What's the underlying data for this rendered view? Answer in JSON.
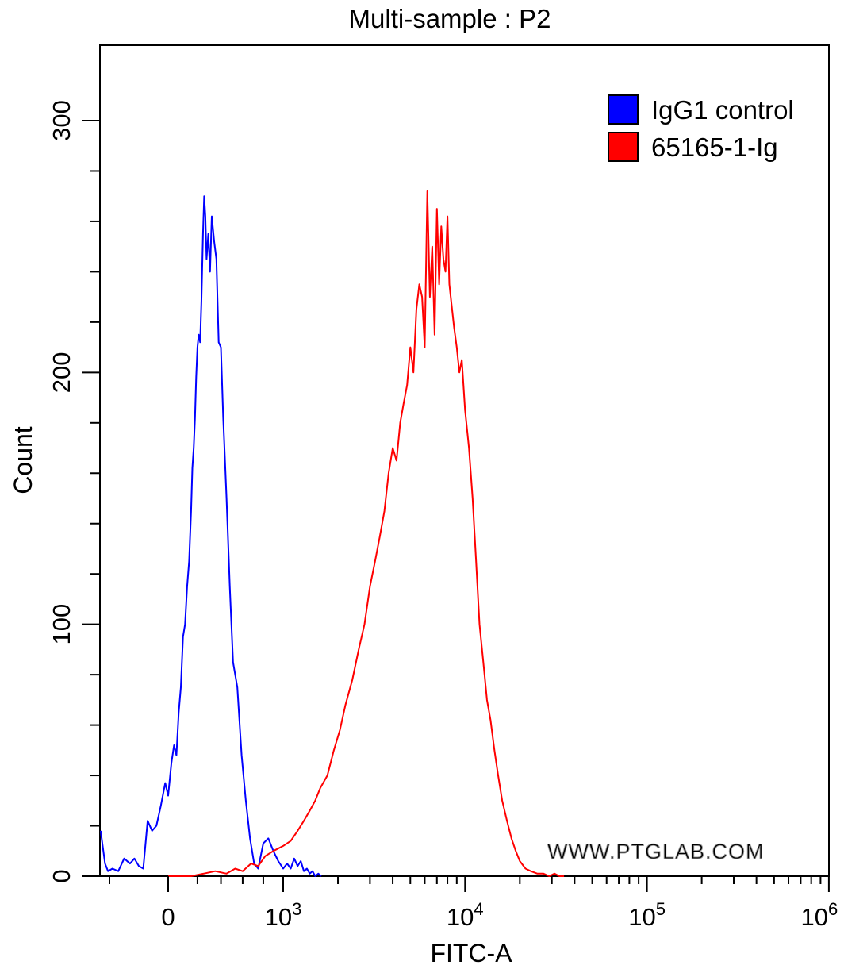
{
  "chart_data": {
    "type": "area",
    "title": "Multi-sample : P2",
    "xlabel": "FITC-A",
    "ylabel": "Count",
    "x_scale": "biexponential",
    "ylim": [
      0,
      315
    ],
    "y_ticks": [
      0,
      100,
      200,
      300
    ],
    "x_ticks": [
      {
        "value": 0,
        "base": "0",
        "exp": ""
      },
      {
        "value": 1000,
        "base": "10",
        "exp": "3"
      },
      {
        "value": 10000,
        "base": "10",
        "exp": "4"
      },
      {
        "value": 100000,
        "base": "10",
        "exp": "5"
      },
      {
        "value": 1000000,
        "base": "10",
        "exp": "6"
      }
    ],
    "legend_position": "top-right",
    "watermark": "WWW.PTGLAB.COM",
    "series": [
      {
        "name": "IgG1 control",
        "color": "#0000FF",
        "x": [
          -230,
          -215,
          -205,
          -190,
          -170,
          -150,
          -130,
          -115,
          -100,
          -85,
          -70,
          -55,
          -40,
          -25,
          -10,
          0,
          15,
          30,
          45,
          60,
          75,
          90,
          105,
          120,
          135,
          150,
          160,
          170,
          180,
          190,
          200,
          210,
          222,
          232,
          245,
          255,
          265,
          275,
          290,
          305,
          320,
          340,
          360,
          380,
          400,
          420,
          450,
          480,
          510,
          550,
          590,
          630,
          670,
          710,
          750,
          800,
          850,
          900,
          950,
          1000,
          1050,
          1100,
          1150,
          1200,
          1250,
          1300,
          1350,
          1400,
          1450,
          1500,
          1560,
          1620
        ],
        "values": [
          18,
          5,
          2,
          3,
          2,
          7,
          5,
          7,
          4,
          3,
          22,
          18,
          20,
          28,
          37,
          32,
          45,
          52,
          48,
          65,
          75,
          95,
          100,
          115,
          125,
          145,
          162,
          170,
          182,
          198,
          210,
          215,
          212,
          228,
          255,
          270,
          262,
          245,
          255,
          240,
          262,
          252,
          245,
          212,
          210,
          182,
          150,
          115,
          85,
          75,
          48,
          30,
          15,
          5,
          3,
          13,
          15,
          10,
          6,
          3,
          5,
          3,
          7,
          4,
          6,
          2,
          3,
          1,
          2,
          0,
          1,
          0
        ]
      },
      {
        "name": "65165-1-Ig",
        "color": "#FF0000",
        "x": [
          0,
          150,
          250,
          350,
          450,
          530,
          600,
          680,
          750,
          820,
          900,
          1000,
          1100,
          1200,
          1300,
          1400,
          1500,
          1600,
          1750,
          1900,
          2050,
          2200,
          2400,
          2600,
          2800,
          3000,
          3200,
          3400,
          3600,
          3800,
          4000,
          4200,
          4400,
          4600,
          4800,
          5000,
          5200,
          5400,
          5600,
          5800,
          6000,
          6200,
          6400,
          6600,
          6800,
          7000,
          7200,
          7400,
          7600,
          7800,
          8000,
          8200,
          8400,
          8700,
          9000,
          9300,
          9600,
          10000,
          10500,
          11000,
          11500,
          12000,
          12600,
          13200,
          13800,
          14500,
          15200,
          16000,
          17000,
          18000,
          19000,
          20000,
          21500,
          23000,
          25000,
          27000,
          29000,
          31000,
          33000,
          35000
        ],
        "values": [
          0,
          0,
          1,
          2,
          1,
          3,
          2,
          5,
          4,
          8,
          10,
          12,
          14,
          18,
          22,
          26,
          30,
          35,
          40,
          50,
          58,
          68,
          78,
          90,
          100,
          115,
          125,
          135,
          145,
          160,
          170,
          165,
          180,
          188,
          195,
          210,
          200,
          225,
          235,
          230,
          210,
          272,
          230,
          250,
          215,
          265,
          235,
          258,
          245,
          240,
          262,
          235,
          228,
          218,
          210,
          200,
          205,
          185,
          170,
          150,
          125,
          100,
          85,
          70,
          62,
          50,
          40,
          30,
          22,
          15,
          10,
          6,
          3,
          2,
          1,
          1,
          0,
          1,
          0,
          0
        ]
      }
    ]
  }
}
